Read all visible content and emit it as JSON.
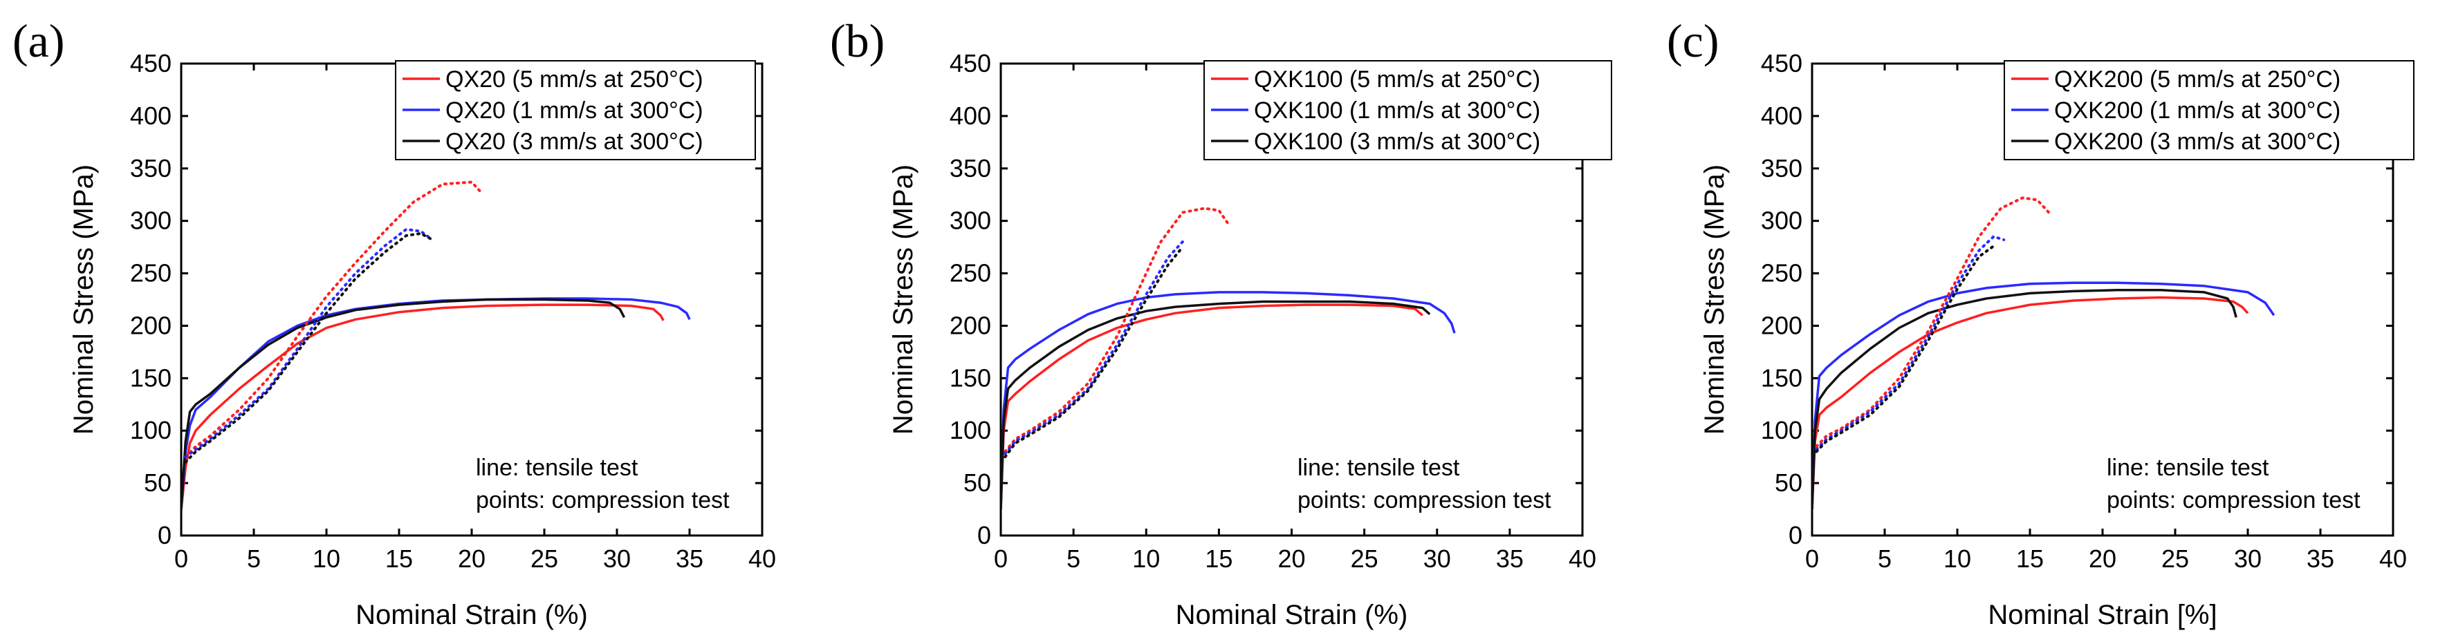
{
  "colors": {
    "red": "#ff2020",
    "blue": "#2a2aff",
    "black": "#111111"
  },
  "chart_data": [
    {
      "type": "line",
      "panel_label": "(a)",
      "xlabel": "Nominal Strain (%)",
      "ylabel": "Nominal Stress (MPa)",
      "xlim": [
        0,
        40
      ],
      "ylim": [
        0,
        450
      ],
      "x_ticks": [
        "0",
        "5",
        "10",
        "15",
        "20",
        "25",
        "30",
        "35",
        "40"
      ],
      "y_ticks": [
        "0",
        "50",
        "100",
        "150",
        "200",
        "250",
        "300",
        "350",
        "400",
        "450"
      ],
      "legend_position": "top-right",
      "annotation": [
        "line: tensile test",
        "points: compression test"
      ],
      "series": [
        {
          "name": "QX20 (5 mm/s at 250°C)",
          "color": "red",
          "style": "line",
          "in_legend": true,
          "x": [
            0,
            0.3,
            0.6,
            1,
            2,
            4,
            6,
            8,
            10,
            12,
            15,
            18,
            21,
            25,
            28,
            31,
            32.5,
            33,
            33.2
          ],
          "y": [
            25,
            65,
            88,
            100,
            115,
            140,
            162,
            183,
            198,
            206,
            213,
            217,
            219,
            220,
            220,
            219,
            216,
            210,
            205
          ]
        },
        {
          "name": "QX20 (1 mm/s at 300°C)",
          "color": "blue",
          "style": "line",
          "in_legend": true,
          "x": [
            0,
            0.3,
            0.6,
            1,
            2,
            4,
            6,
            8,
            10,
            12,
            15,
            18,
            21,
            25,
            28,
            31,
            33,
            34.2,
            34.8,
            35
          ],
          "y": [
            25,
            80,
            105,
            120,
            132,
            160,
            185,
            200,
            210,
            216,
            221,
            224,
            225,
            226,
            226,
            225,
            222,
            218,
            212,
            206
          ]
        },
        {
          "name": "QX20 (3 mm/s at 300°C)",
          "color": "black",
          "style": "line",
          "in_legend": true,
          "x": [
            0,
            0.3,
            0.6,
            1,
            2,
            4,
            6,
            8,
            10,
            12,
            15,
            18,
            21,
            25,
            28,
            29.5,
            30.2,
            30.5
          ],
          "y": [
            25,
            90,
            118,
            125,
            135,
            160,
            182,
            198,
            208,
            215,
            220,
            223,
            225,
            225,
            224,
            222,
            216,
            208
          ]
        },
        {
          "name": "QX20 compression (5 mm/s at 250°C)",
          "color": "red",
          "style": "dotted",
          "in_legend": false,
          "x": [
            0.3,
            1,
            2,
            4,
            6,
            8,
            10,
            12,
            14,
            16,
            18,
            20,
            20.6
          ],
          "y": [
            75,
            85,
            95,
            120,
            150,
            190,
            228,
            260,
            290,
            318,
            335,
            337,
            328
          ]
        },
        {
          "name": "QX20 compression (1 mm/s at 300°C)",
          "color": "blue",
          "style": "dotted",
          "in_legend": false,
          "x": [
            0.3,
            1,
            2,
            4,
            6,
            8,
            10,
            12,
            14,
            15.5,
            16.5,
            17.2
          ],
          "y": [
            75,
            82,
            92,
            115,
            140,
            178,
            218,
            250,
            276,
            292,
            290,
            283
          ]
        },
        {
          "name": "QX20 compression (3 mm/s at 300°C)",
          "color": "black",
          "style": "dotted",
          "in_legend": false,
          "x": [
            0.3,
            1,
            2,
            4,
            6,
            8,
            10,
            12,
            14,
            15.5,
            16.5,
            17.3
          ],
          "y": [
            70,
            80,
            90,
            112,
            138,
            175,
            212,
            245,
            270,
            286,
            288,
            282
          ]
        }
      ]
    },
    {
      "type": "line",
      "panel_label": "(b)",
      "xlabel": "Nominal Strain (%)",
      "ylabel": "Nominal Stress (MPa)",
      "xlim": [
        0,
        40
      ],
      "ylim": [
        0,
        450
      ],
      "x_ticks": [
        "0",
        "5",
        "10",
        "15",
        "20",
        "25",
        "30",
        "35",
        "40"
      ],
      "y_ticks": [
        "0",
        "50",
        "100",
        "150",
        "200",
        "250",
        "300",
        "350",
        "400",
        "450"
      ],
      "legend_position": "top-right",
      "annotation": [
        "line: tensile test",
        "points: compression test"
      ],
      "series": [
        {
          "name": "QXK100 (5 mm/s at 250°C)",
          "color": "red",
          "style": "line",
          "in_legend": true,
          "x": [
            0,
            0.2,
            0.5,
            1,
            2,
            4,
            6,
            8,
            10,
            12,
            15,
            18,
            21,
            24,
            27,
            28.5,
            29
          ],
          "y": [
            25,
            100,
            128,
            135,
            147,
            168,
            186,
            198,
            206,
            212,
            217,
            219,
            220,
            220,
            219,
            216,
            210
          ]
        },
        {
          "name": "QXK100 (1 mm/s at 300°C)",
          "color": "blue",
          "style": "line",
          "in_legend": true,
          "x": [
            0,
            0.2,
            0.5,
            1,
            2,
            4,
            6,
            8,
            10,
            12,
            15,
            18,
            21,
            24,
            27,
            29.5,
            30.5,
            31,
            31.2
          ],
          "y": [
            25,
            120,
            160,
            168,
            178,
            196,
            211,
            221,
            227,
            230,
            232,
            232,
            231,
            229,
            226,
            221,
            212,
            202,
            193
          ]
        },
        {
          "name": "QXK100 (3 mm/s at 300°C)",
          "color": "black",
          "style": "line",
          "in_legend": true,
          "x": [
            0,
            0.2,
            0.5,
            1,
            2,
            4,
            6,
            8,
            10,
            12,
            15,
            18,
            21,
            24,
            27,
            29,
            29.5
          ],
          "y": [
            25,
            110,
            140,
            148,
            160,
            180,
            196,
            207,
            214,
            218,
            221,
            223,
            223,
            223,
            221,
            217,
            211
          ]
        },
        {
          "name": "QXK100 compression (5 mm/s at 250°C)",
          "color": "red",
          "style": "dotted",
          "in_legend": false,
          "x": [
            0.3,
            1,
            2,
            4,
            6,
            8,
            9.5,
            11,
            12.5,
            14,
            15,
            15.6
          ],
          "y": [
            80,
            92,
            100,
            118,
            145,
            190,
            235,
            280,
            308,
            312,
            310,
            298
          ]
        },
        {
          "name": "QXK100 compression (1 mm/s at 300°C)",
          "color": "blue",
          "style": "dotted",
          "in_legend": false,
          "x": [
            0.3,
            1,
            2,
            4,
            6,
            8,
            10,
            11.5,
            12.5
          ],
          "y": [
            78,
            90,
            98,
            115,
            140,
            182,
            230,
            265,
            280
          ]
        },
        {
          "name": "QXK100 compression (3 mm/s at 300°C)",
          "color": "black",
          "style": "dotted",
          "in_legend": false,
          "x": [
            0.3,
            1,
            2,
            4,
            6,
            8,
            10,
            11.5,
            12.5
          ],
          "y": [
            75,
            88,
            96,
            113,
            138,
            178,
            225,
            258,
            275
          ]
        }
      ]
    },
    {
      "type": "line",
      "panel_label": "(c)",
      "xlabel": "Nominal Strain [%]",
      "ylabel": "Nominal Stress (MPa)",
      "xlim": [
        0,
        40
      ],
      "ylim": [
        0,
        450
      ],
      "x_ticks": [
        "0",
        "5",
        "10",
        "15",
        "20",
        "25",
        "30",
        "35",
        "40"
      ],
      "y_ticks": [
        "0",
        "50",
        "100",
        "150",
        "200",
        "250",
        "300",
        "350",
        "400",
        "450"
      ],
      "legend_position": "top-right",
      "annotation": [
        "line: tensile test",
        "points: compression test"
      ],
      "series": [
        {
          "name": "QXK200 (5 mm/s at 250°C)",
          "color": "red",
          "style": "line",
          "in_legend": true,
          "x": [
            0,
            0.2,
            0.5,
            1,
            2,
            4,
            6,
            8,
            10,
            12,
            15,
            18,
            21,
            24,
            27,
            29,
            29.6,
            30
          ],
          "y": [
            25,
            90,
            115,
            122,
            132,
            155,
            175,
            192,
            203,
            212,
            220,
            224,
            226,
            227,
            226,
            223,
            218,
            212
          ]
        },
        {
          "name": "QXK200 (1 mm/s at 300°C)",
          "color": "blue",
          "style": "line",
          "in_legend": true,
          "x": [
            0,
            0.2,
            0.5,
            1,
            2,
            4,
            6,
            8,
            10,
            12,
            15,
            18,
            21,
            24,
            27,
            30,
            31.2,
            31.8
          ],
          "y": [
            25,
            110,
            152,
            160,
            172,
            192,
            210,
            223,
            231,
            236,
            240,
            241,
            241,
            240,
            238,
            232,
            222,
            210
          ]
        },
        {
          "name": "QXK200 (3 mm/s at 300°C)",
          "color": "black",
          "style": "line",
          "in_legend": true,
          "x": [
            0,
            0.2,
            0.5,
            1,
            2,
            4,
            6,
            8,
            10,
            12,
            15,
            18,
            21,
            24,
            27,
            28.6,
            29,
            29.2
          ],
          "y": [
            25,
            100,
            130,
            140,
            155,
            178,
            198,
            212,
            220,
            226,
            231,
            233,
            234,
            234,
            232,
            226,
            218,
            208
          ]
        },
        {
          "name": "QXK200 compression (5 mm/s at 250°C)",
          "color": "red",
          "style": "dotted",
          "in_legend": false,
          "x": [
            0.3,
            1,
            2,
            4,
            6,
            8,
            10,
            11.5,
            13,
            14.5,
            15.5,
            16.3
          ],
          "y": [
            85,
            95,
            102,
            120,
            150,
            195,
            245,
            285,
            312,
            322,
            320,
            308
          ]
        },
        {
          "name": "QXK200 compression (1 mm/s at 300°C)",
          "color": "blue",
          "style": "dotted",
          "in_legend": false,
          "x": [
            0.3,
            1,
            2,
            4,
            6,
            8,
            10,
            11.5,
            12.5,
            13.2
          ],
          "y": [
            82,
            92,
            100,
            118,
            145,
            190,
            240,
            272,
            285,
            282
          ]
        },
        {
          "name": "QXK200 compression (3 mm/s at 300°C)",
          "color": "black",
          "style": "dotted",
          "in_legend": false,
          "x": [
            0.3,
            1,
            2,
            4,
            6,
            8,
            10,
            11.5,
            12.5
          ],
          "y": [
            80,
            90,
            98,
            115,
            142,
            186,
            235,
            266,
            276
          ]
        }
      ]
    }
  ]
}
